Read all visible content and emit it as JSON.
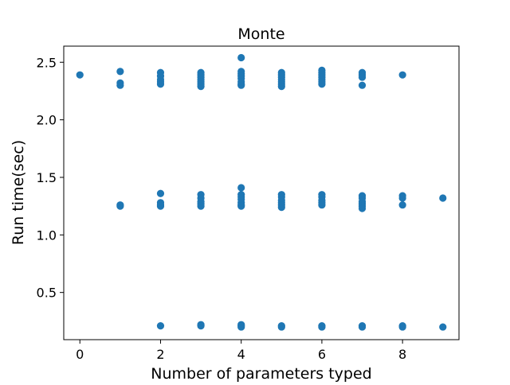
{
  "chart_data": {
    "type": "scatter",
    "title": "Monte",
    "xlabel": "Number of parameters typed",
    "ylabel": "Run time(sec)",
    "xlim": [
      -0.4,
      9.4
    ],
    "ylim": [
      0.09,
      2.64
    ],
    "x_ticks": [
      0,
      2,
      4,
      6,
      8
    ],
    "x_tick_labels": [
      "0",
      "2",
      "4",
      "6",
      "8"
    ],
    "y_ticks": [
      0.5,
      1.0,
      1.5,
      2.0,
      2.5
    ],
    "y_tick_labels": [
      "0.5",
      "1.0",
      "1.5",
      "2.0",
      "2.5"
    ],
    "grid": false,
    "marker_color": "#1f77b4",
    "points": [
      {
        "x": 0,
        "y": 2.39
      },
      {
        "x": 1,
        "y": 2.42
      },
      {
        "x": 1,
        "y": 2.32
      },
      {
        "x": 1,
        "y": 2.3
      },
      {
        "x": 1,
        "y": 1.26
      },
      {
        "x": 1,
        "y": 1.25
      },
      {
        "x": 2,
        "y": 2.41
      },
      {
        "x": 2,
        "y": 2.38
      },
      {
        "x": 2,
        "y": 2.35
      },
      {
        "x": 2,
        "y": 2.33
      },
      {
        "x": 2,
        "y": 2.31
      },
      {
        "x": 2,
        "y": 1.36
      },
      {
        "x": 2,
        "y": 1.28
      },
      {
        "x": 2,
        "y": 1.26
      },
      {
        "x": 2,
        "y": 1.25
      },
      {
        "x": 2,
        "y": 0.21
      },
      {
        "x": 3,
        "y": 2.41
      },
      {
        "x": 3,
        "y": 2.39
      },
      {
        "x": 3,
        "y": 2.37
      },
      {
        "x": 3,
        "y": 2.35
      },
      {
        "x": 3,
        "y": 2.33
      },
      {
        "x": 3,
        "y": 2.31
      },
      {
        "x": 3,
        "y": 2.29
      },
      {
        "x": 3,
        "y": 1.35
      },
      {
        "x": 3,
        "y": 1.32
      },
      {
        "x": 3,
        "y": 1.29
      },
      {
        "x": 3,
        "y": 1.27
      },
      {
        "x": 3,
        "y": 1.25
      },
      {
        "x": 3,
        "y": 0.22
      },
      {
        "x": 3,
        "y": 0.21
      },
      {
        "x": 4,
        "y": 2.54
      },
      {
        "x": 4,
        "y": 2.42
      },
      {
        "x": 4,
        "y": 2.4
      },
      {
        "x": 4,
        "y": 2.38
      },
      {
        "x": 4,
        "y": 2.36
      },
      {
        "x": 4,
        "y": 2.33
      },
      {
        "x": 4,
        "y": 2.31
      },
      {
        "x": 4,
        "y": 2.3
      },
      {
        "x": 4,
        "y": 1.41
      },
      {
        "x": 4,
        "y": 1.35
      },
      {
        "x": 4,
        "y": 1.33
      },
      {
        "x": 4,
        "y": 1.31
      },
      {
        "x": 4,
        "y": 1.28
      },
      {
        "x": 4,
        "y": 1.26
      },
      {
        "x": 4,
        "y": 1.25
      },
      {
        "x": 4,
        "y": 0.22
      },
      {
        "x": 4,
        "y": 0.21
      },
      {
        "x": 4,
        "y": 0.2
      },
      {
        "x": 5,
        "y": 2.41
      },
      {
        "x": 5,
        "y": 2.39
      },
      {
        "x": 5,
        "y": 2.37
      },
      {
        "x": 5,
        "y": 2.35
      },
      {
        "x": 5,
        "y": 2.33
      },
      {
        "x": 5,
        "y": 2.31
      },
      {
        "x": 5,
        "y": 2.29
      },
      {
        "x": 5,
        "y": 1.35
      },
      {
        "x": 5,
        "y": 1.33
      },
      {
        "x": 5,
        "y": 1.3
      },
      {
        "x": 5,
        "y": 1.28
      },
      {
        "x": 5,
        "y": 1.26
      },
      {
        "x": 5,
        "y": 1.24
      },
      {
        "x": 5,
        "y": 0.21
      },
      {
        "x": 5,
        "y": 0.2
      },
      {
        "x": 6,
        "y": 2.43
      },
      {
        "x": 6,
        "y": 2.41
      },
      {
        "x": 6,
        "y": 2.39
      },
      {
        "x": 6,
        "y": 2.37
      },
      {
        "x": 6,
        "y": 2.35
      },
      {
        "x": 6,
        "y": 2.33
      },
      {
        "x": 6,
        "y": 2.31
      },
      {
        "x": 6,
        "y": 1.35
      },
      {
        "x": 6,
        "y": 1.33
      },
      {
        "x": 6,
        "y": 1.3
      },
      {
        "x": 6,
        "y": 1.28
      },
      {
        "x": 6,
        "y": 1.26
      },
      {
        "x": 6,
        "y": 0.21
      },
      {
        "x": 6,
        "y": 0.2
      },
      {
        "x": 7,
        "y": 2.41
      },
      {
        "x": 7,
        "y": 2.39
      },
      {
        "x": 7,
        "y": 2.37
      },
      {
        "x": 7,
        "y": 2.3
      },
      {
        "x": 7,
        "y": 1.34
      },
      {
        "x": 7,
        "y": 1.32
      },
      {
        "x": 7,
        "y": 1.29
      },
      {
        "x": 7,
        "y": 1.27
      },
      {
        "x": 7,
        "y": 1.25
      },
      {
        "x": 7,
        "y": 1.23
      },
      {
        "x": 7,
        "y": 0.21
      },
      {
        "x": 7,
        "y": 0.2
      },
      {
        "x": 8,
        "y": 2.39
      },
      {
        "x": 8,
        "y": 1.34
      },
      {
        "x": 8,
        "y": 1.32
      },
      {
        "x": 8,
        "y": 1.26
      },
      {
        "x": 8,
        "y": 0.21
      },
      {
        "x": 8,
        "y": 0.2
      },
      {
        "x": 9,
        "y": 1.32
      },
      {
        "x": 9,
        "y": 0.2
      }
    ]
  }
}
